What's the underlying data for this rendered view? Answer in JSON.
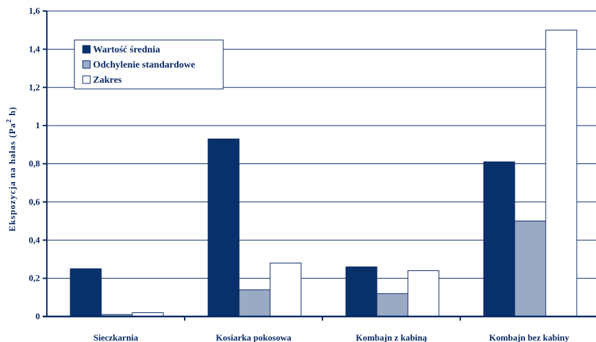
{
  "chart_data": {
    "type": "bar",
    "ylabel_main": "Ekspozycja na hałas (Pa",
    "ylabel_sup": "2",
    "ylabel_tail": " h)",
    "xlabel": "",
    "ylim": [
      0,
      1.6
    ],
    "yticks": [
      "0",
      "0,2",
      "0,4",
      "0,6",
      "0,8",
      "1",
      "1,2",
      "1,4",
      "1,6"
    ],
    "grid": true,
    "legend_position": "top-left",
    "categories": [
      "Sieczkarnia",
      "Kosiarka pokosowa",
      "Kombajn z kabiną",
      "Kombajn bez kabiny"
    ],
    "series": [
      {
        "name": "Wartość średnia",
        "color": "#08306b",
        "values": [
          0.25,
          0.93,
          0.26,
          0.81
        ]
      },
      {
        "name": "Odchylenie standardowe",
        "color": "#9aa9c4",
        "values": [
          0.01,
          0.14,
          0.12,
          0.5
        ]
      },
      {
        "name": "Zakres",
        "color": "#ffffff",
        "values": [
          0.02,
          0.28,
          0.24,
          1.5
        ]
      }
    ]
  }
}
